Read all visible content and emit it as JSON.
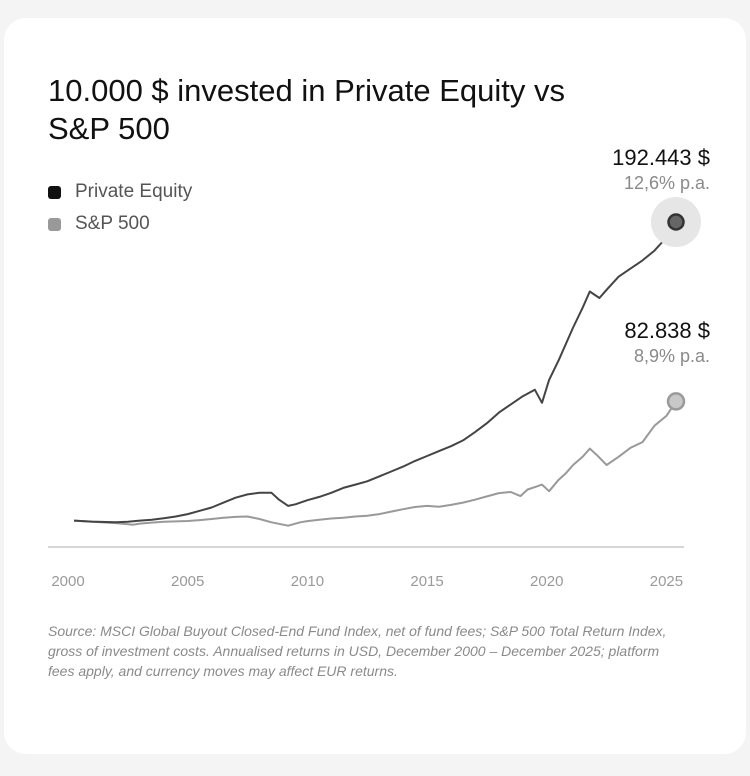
{
  "title": "10.000 $ invested in Private Equity vs S&P 500",
  "chart_data": {
    "type": "line",
    "title": "10.000 $ invested in Private Equity vs S&P 500",
    "xlabel": "",
    "ylabel": "",
    "xlim": [
      2000,
      2026
    ],
    "ylim": [
      0,
      200000
    ],
    "xticks": [
      "2000",
      "2005",
      "2010",
      "2015",
      "2020",
      "2025"
    ],
    "grid": false,
    "legend_position": "top-left",
    "series": [
      {
        "name": "Private Equity",
        "color": "#444444",
        "end_value": "192.443 $",
        "rate": "12,6% p.a.",
        "x": [
          2000.25,
          2001,
          2002,
          2002.5,
          2003,
          2003.5,
          2004,
          2004.5,
          2005,
          2005.5,
          2006,
          2006.5,
          2007,
          2007.5,
          2008,
          2008.5,
          2008.8,
          2009.2,
          2009.5,
          2010,
          2010.5,
          2011,
          2011.5,
          2012,
          2012.5,
          2013,
          2013.5,
          2014,
          2014.5,
          2015,
          2015.5,
          2016,
          2016.5,
          2017,
          2017.5,
          2018,
          2018.5,
          2019,
          2019.5,
          2019.8,
          2020.1,
          2020.5,
          2020.8,
          2021.1,
          2021.5,
          2021.8,
          2022.2,
          2022.5,
          2023,
          2023.5,
          2024,
          2024.5,
          2025,
          2025.4
        ],
        "values": [
          10000,
          9400,
          9000,
          9300,
          10000,
          10500,
          11500,
          12500,
          14000,
          16000,
          18000,
          21000,
          24000,
          26000,
          27000,
          27000,
          23000,
          19000,
          20000,
          22500,
          24500,
          27000,
          30000,
          32000,
          34000,
          37000,
          40000,
          43000,
          46500,
          49500,
          52500,
          55500,
          59000,
          64000,
          69500,
          76000,
          81000,
          86000,
          90000,
          82000,
          96000,
          108000,
          118000,
          128000,
          140000,
          150000,
          146000,
          151000,
          159000,
          164000,
          169000,
          175000,
          183000,
          192443
        ]
      },
      {
        "name": "S&P 500",
        "color": "#999999",
        "end_value": "82.838 $",
        "rate": "8,9% p.a.",
        "x": [
          2000.25,
          2001,
          2002,
          2002.7,
          2003,
          2003.5,
          2004,
          2005,
          2005.5,
          2006,
          2006.5,
          2007,
          2007.5,
          2008,
          2008.5,
          2009.2,
          2009.7,
          2010,
          2010.5,
          2011,
          2011.5,
          2012,
          2012.5,
          2013,
          2013.5,
          2014,
          2014.5,
          2015,
          2015.5,
          2016,
          2016.5,
          2017,
          2017.5,
          2018,
          2018.5,
          2018.9,
          2019.2,
          2019.6,
          2019.8,
          2020.1,
          2020.5,
          2020.8,
          2021.1,
          2021.5,
          2021.8,
          2022.1,
          2022.5,
          2023,
          2023.5,
          2024,
          2024.5,
          2025,
          2025.4
        ],
        "values": [
          10000,
          9300,
          8500,
          7500,
          8200,
          8800,
          9300,
          9800,
          10300,
          11000,
          11700,
          12300,
          12500,
          11000,
          9000,
          6900,
          9000,
          9700,
          10500,
          11300,
          11700,
          12500,
          13000,
          14000,
          15500,
          17000,
          18300,
          19000,
          18500,
          19600,
          21000,
          22800,
          24800,
          26800,
          27500,
          25000,
          29000,
          31000,
          32000,
          28000,
          35000,
          39000,
          44000,
          49000,
          54000,
          50000,
          44000,
          49000,
          54500,
          58000,
          68000,
          74000,
          82838
        ]
      }
    ]
  },
  "source": "Source: MSCI Global Buyout Closed-End Fund Index, net of fund fees; S&P 500 Total Return Index, gross of investment costs. Annualised returns in USD, December 2000 – December 2025; platform fees apply, and currency moves may affect EUR returns."
}
